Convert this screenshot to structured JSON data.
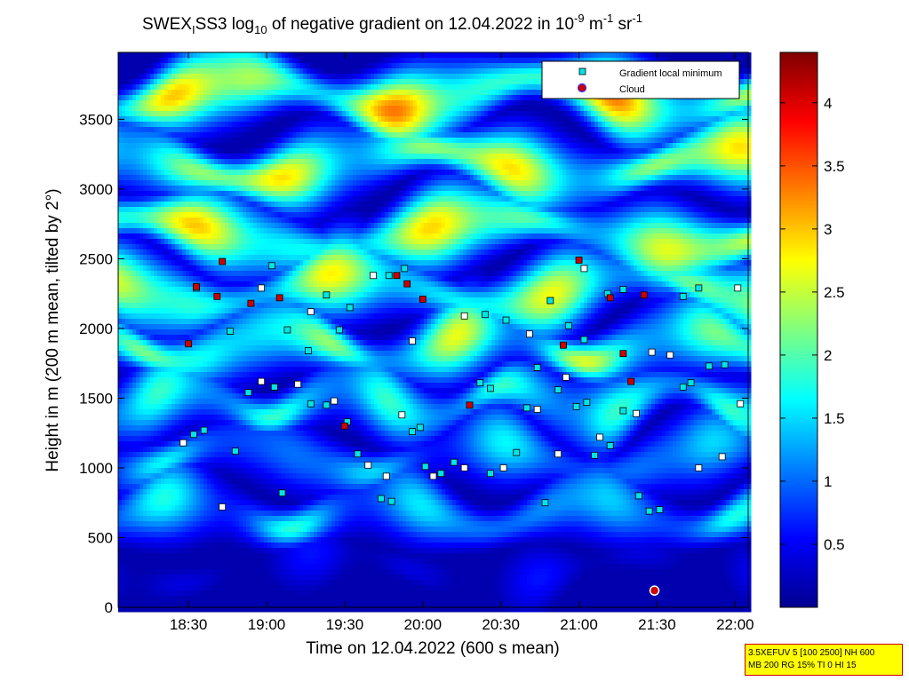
{
  "chart_data": {
    "type": "heatmap",
    "title": {
      "prefix": "SWEX",
      "sub1": "I",
      "mid": "SS3 log",
      "sub2": "10",
      "text1": " of negative gradient on 12.04.2022 in 10",
      "sup1": "-9",
      "text2": " m",
      "sup2": "-1",
      "text3": " sr",
      "sup3": "-1"
    },
    "xlabel": "Time on 12.04.2022 (600 s mean)",
    "ylabel": "Height in m (200 m mean, tilted by 2°)",
    "x_ticks": [
      "18:30",
      "19:00",
      "19:30",
      "20:00",
      "20:30",
      "21:00",
      "21:30",
      "22:00"
    ],
    "x_tick_minutes": [
      1110,
      1140,
      1170,
      1200,
      1230,
      1260,
      1290,
      1320
    ],
    "xlim_minutes": [
      1083,
      1325
    ],
    "y_ticks": [
      0,
      500,
      1000,
      1500,
      2000,
      2500,
      3000,
      3500
    ],
    "ylim": [
      0,
      3980
    ],
    "colorbar": {
      "ticks": [
        "0.5",
        "1",
        "1.5",
        "2",
        "2.5",
        "3",
        "3.5",
        "4"
      ],
      "tick_values": [
        0.5,
        1,
        1.5,
        2,
        2.5,
        3,
        3.5,
        4
      ],
      "range": [
        0,
        4.4
      ],
      "colormap": "jet"
    },
    "legend": {
      "position": "top-right",
      "entries": [
        {
          "label": "Gradient local minimum",
          "marker": "square",
          "color": "#00e5e5"
        },
        {
          "label": "Cloud",
          "marker": "circle",
          "color": "#cc0000"
        }
      ]
    },
    "bands": [
      {
        "h": 300,
        "v": 0.45,
        "amp": 0.2,
        "period": 40
      },
      {
        "h": 700,
        "v": 1.55,
        "amp": 0.3,
        "period": 25
      },
      {
        "h": 1100,
        "v": 1.4,
        "amp": 0.3,
        "period": 30
      },
      {
        "h": 1500,
        "v": 1.9,
        "amp": 0.35,
        "period": 20
      },
      {
        "h": 1900,
        "v": 2.3,
        "amp": 0.4,
        "period": 25
      },
      {
        "h": 2300,
        "v": 2.4,
        "amp": 0.4,
        "period": 35
      },
      {
        "h": 2700,
        "v": 2.6,
        "amp": 0.4,
        "period": 45
      },
      {
        "h": 3200,
        "v": 2.7,
        "amp": 0.45,
        "period": 40
      },
      {
        "h": 3700,
        "v": 2.9,
        "amp": 0.5,
        "period": 35
      }
    ],
    "gradient_minima": [
      [
        1108,
        1180
      ],
      [
        1112,
        1240
      ],
      [
        1116,
        1270
      ],
      [
        1123,
        720
      ],
      [
        1128,
        1120
      ],
      [
        1133,
        1540
      ],
      [
        1138,
        1620
      ],
      [
        1143,
        1580
      ],
      [
        1146,
        820
      ],
      [
        1152,
        1600
      ],
      [
        1157,
        1460
      ],
      [
        1163,
        1450
      ],
      [
        1166,
        1480
      ],
      [
        1171,
        1330
      ],
      [
        1175,
        1100
      ],
      [
        1179,
        1020
      ],
      [
        1184,
        780
      ],
      [
        1188,
        760
      ],
      [
        1192,
        1380
      ],
      [
        1196,
        1260
      ],
      [
        1199,
        1290
      ],
      [
        1204,
        940
      ],
      [
        1207,
        960
      ],
      [
        1212,
        1040
      ],
      [
        1216,
        1000
      ],
      [
        1222,
        1610
      ],
      [
        1226,
        1570
      ],
      [
        1231,
        1000
      ],
      [
        1236,
        1110
      ],
      [
        1240,
        1430
      ],
      [
        1244,
        1420
      ],
      [
        1247,
        750
      ],
      [
        1252,
        1560
      ],
      [
        1255,
        1650
      ],
      [
        1259,
        1440
      ],
      [
        1263,
        1470
      ],
      [
        1268,
        1220
      ],
      [
        1272,
        1160
      ],
      [
        1277,
        1410
      ],
      [
        1282,
        1390
      ],
      [
        1287,
        690
      ],
      [
        1291,
        700
      ],
      [
        1295,
        1810
      ],
      [
        1300,
        1580
      ],
      [
        1303,
        1610
      ],
      [
        1306,
        1000
      ],
      [
        1310,
        1730
      ],
      [
        1316,
        1740
      ],
      [
        1322,
        1460
      ],
      [
        1113,
        2290
      ],
      [
        1126,
        1980
      ],
      [
        1138,
        2290
      ],
      [
        1142,
        2450
      ],
      [
        1148,
        1990
      ],
      [
        1157,
        2120
      ],
      [
        1163,
        2240
      ],
      [
        1172,
        2150
      ],
      [
        1181,
        2380
      ],
      [
        1187,
        2380
      ],
      [
        1193,
        2430
      ],
      [
        1216,
        2090
      ],
      [
        1224,
        2100
      ],
      [
        1232,
        2060
      ],
      [
        1241,
        1960
      ],
      [
        1249,
        2200
      ],
      [
        1256,
        2020
      ],
      [
        1262,
        2430
      ],
      [
        1271,
        2250
      ],
      [
        1277,
        2280
      ],
      [
        1288,
        1830
      ],
      [
        1300,
        2230
      ],
      [
        1306,
        2290
      ],
      [
        1321,
        2290
      ],
      [
        1156,
        1840
      ],
      [
        1168,
        1990
      ],
      [
        1196,
        1910
      ],
      [
        1244,
        1720
      ],
      [
        1262,
        1920
      ],
      [
        1186,
        940
      ],
      [
        1201,
        1010
      ],
      [
        1226,
        960
      ],
      [
        1252,
        1100
      ],
      [
        1266,
        1090
      ],
      [
        1283,
        800
      ],
      [
        1315,
        1080
      ]
    ],
    "clouds": [
      [
        1110,
        1890
      ],
      [
        1113,
        2300
      ],
      [
        1121,
        2230
      ],
      [
        1123,
        2480
      ],
      [
        1134,
        2180
      ],
      [
        1145,
        2220
      ],
      [
        1170,
        1300
      ],
      [
        1190,
        2380
      ],
      [
        1194,
        2320
      ],
      [
        1200,
        2210
      ],
      [
        1218,
        1450
      ],
      [
        1254,
        1880
      ],
      [
        1260,
        2490
      ],
      [
        1272,
        2220
      ],
      [
        1277,
        1820
      ],
      [
        1285,
        2240
      ],
      [
        1280,
        1620
      ]
    ],
    "cloud_base_marker": [
      1289,
      120
    ]
  },
  "info": {
    "line1": "3.5XEFUV 5 [100 2500] NH 600",
    "line2": "MB 200 RG 15% TI 0 HI 15"
  }
}
